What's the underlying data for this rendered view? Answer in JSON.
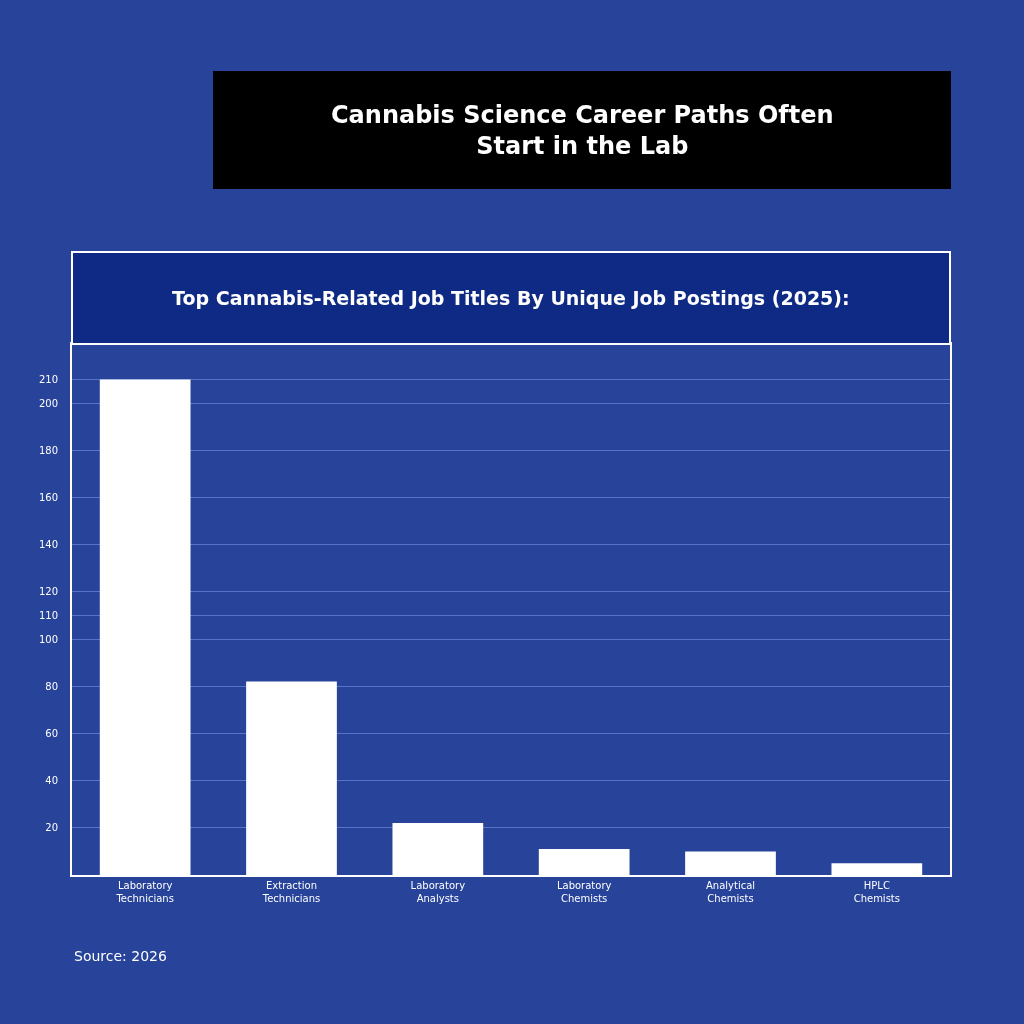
{
  "chart_data": {
    "type": "bar",
    "title": "Cannabis Science Career Paths Often Start in the Lab",
    "subtitle": "Top Cannabis-Related Job Titles By Unique Job Postings (2025):",
    "categories": [
      "Laboratory Technicians",
      "Extraction Technicians",
      "Laboratory Analysts",
      "Laboratory Chemists",
      "Analytical Chemists",
      "HPLC Chemists"
    ],
    "values": [
      210,
      82,
      22,
      11,
      10,
      5
    ],
    "color": "#ffffff",
    "ylim": [
      0,
      225
    ],
    "yticks": [
      20,
      40,
      60,
      80,
      100,
      110,
      120,
      140,
      160,
      180,
      200,
      210
    ],
    "grid": "y",
    "annotations": [
      "Source: 2026"
    ]
  }
}
